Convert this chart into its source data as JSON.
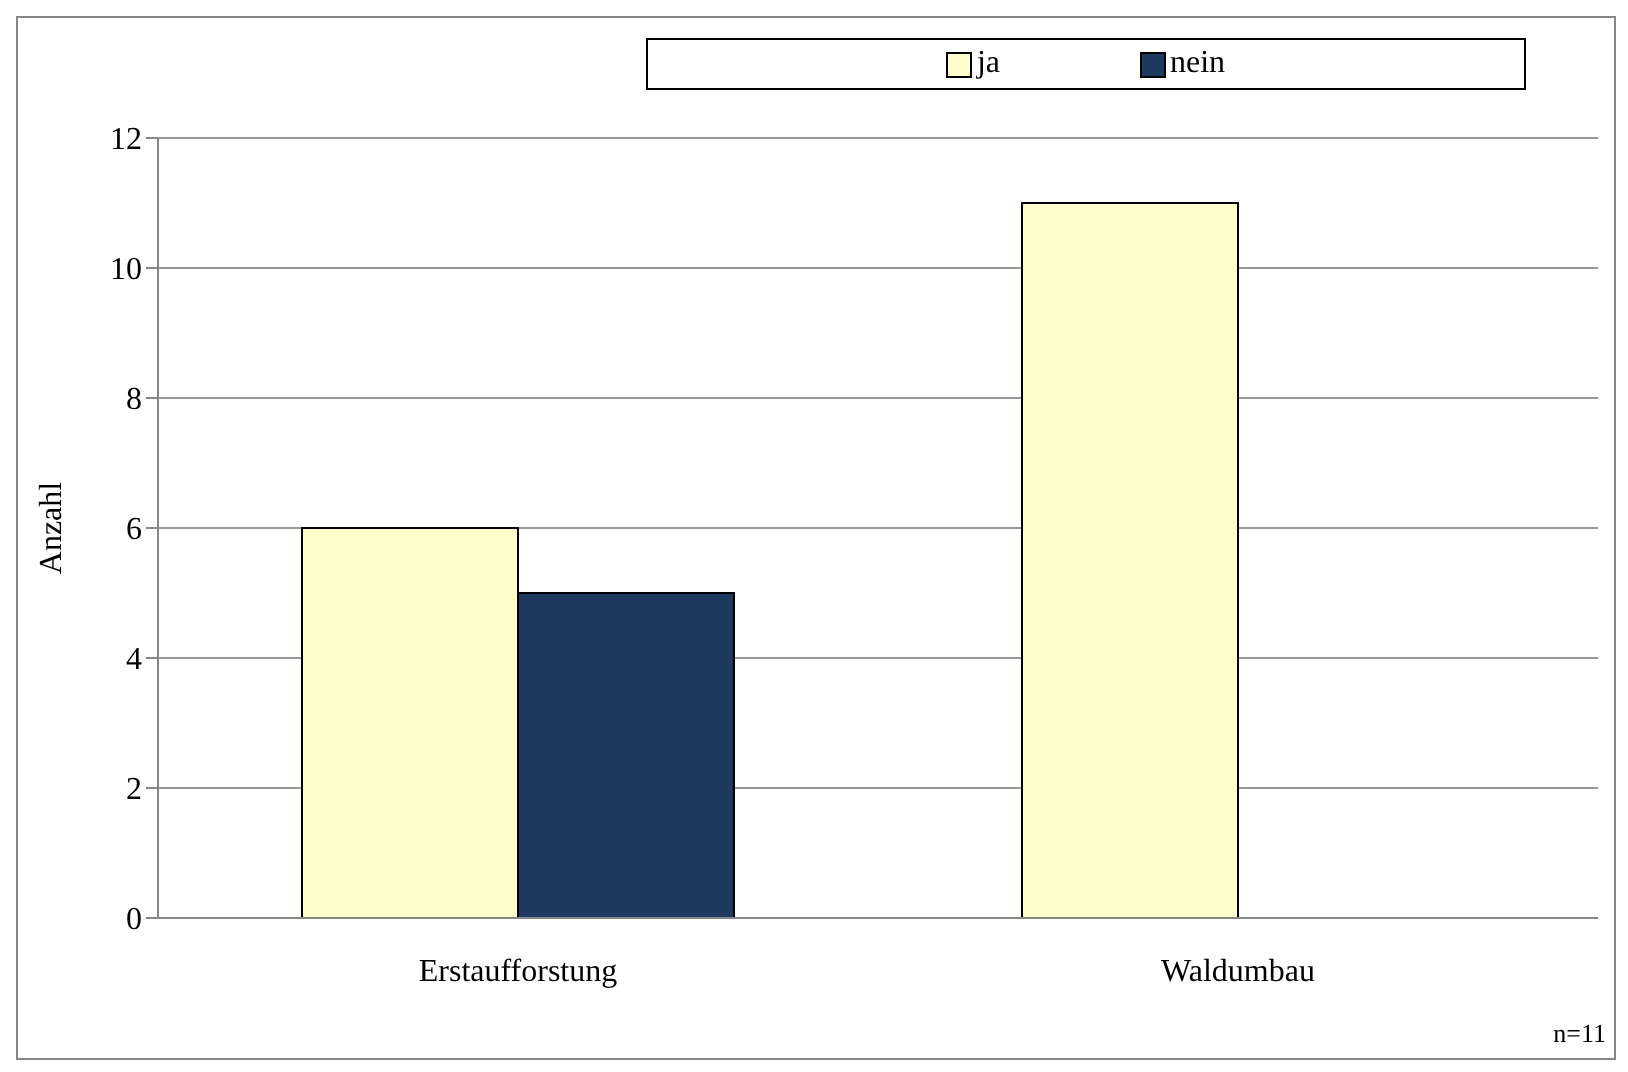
{
  "chart_data": {
    "type": "bar",
    "ylabel": "Anzahl",
    "categories": [
      "Erstaufforstung",
      "Waldumbau"
    ],
    "series": [
      {
        "name": "ja",
        "color": "#ffffcc",
        "values": [
          6,
          11
        ]
      },
      {
        "name": "nein",
        "color": "#1f3a5f",
        "values": [
          5,
          0
        ]
      }
    ],
    "ylim": [
      0,
      12
    ],
    "yticks": [
      0,
      2,
      4,
      6,
      8,
      10,
      12
    ],
    "grid": "y",
    "legend": "top",
    "annotations": [
      "n=11"
    ]
  }
}
